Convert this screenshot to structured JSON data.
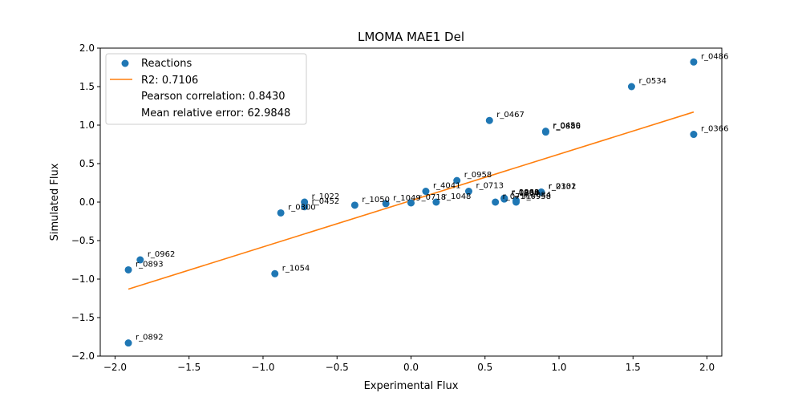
{
  "chart_data": {
    "type": "scatter",
    "title": "LMOMA MAE1 Del",
    "xlabel": "Experimental Flux",
    "ylabel": "Simulated Flux",
    "xlim": [
      -2.1,
      2.1
    ],
    "ylim": [
      -2.0,
      2.0
    ],
    "xticks": [
      -2.0,
      -1.5,
      -1.0,
      -0.5,
      0.0,
      0.5,
      1.0,
      1.5,
      2.0
    ],
    "yticks": [
      -2.0,
      -1.5,
      -1.0,
      -0.5,
      0.0,
      0.5,
      1.0,
      1.5,
      2.0
    ],
    "xtick_labels": [
      "−2.0",
      "−1.5",
      "−1.0",
      "−0.5",
      "0.0",
      "0.5",
      "1.0",
      "1.5",
      "2.0"
    ],
    "ytick_labels": [
      "−2.0",
      "−1.5",
      "−1.0",
      "−0.5",
      "0.0",
      "0.5",
      "1.0",
      "1.5",
      "2.0"
    ],
    "colors": {
      "points": "#1f77b4",
      "fit_line": "#ff7f0e"
    },
    "legend": {
      "position": "upper-left",
      "entries": [
        "Reactions",
        "R2: 0.7106",
        "Pearson correlation: 0.8430",
        "Mean relative error: 62.9848"
      ]
    },
    "fit_line": {
      "x": [
        -1.91,
        1.91
      ],
      "y": [
        -1.13,
        1.17
      ]
    },
    "points": [
      {
        "x": 1.91,
        "y": 1.82,
        "label": "r_0486"
      },
      {
        "x": 1.49,
        "y": 1.5,
        "label": "r_0534"
      },
      {
        "x": 0.53,
        "y": 1.06,
        "label": "r_0467"
      },
      {
        "x": 0.91,
        "y": 0.92,
        "label": "r_0450"
      },
      {
        "x": 0.91,
        "y": 0.91,
        "label": "r_0886"
      },
      {
        "x": 1.91,
        "y": 0.88,
        "label": "r_0366"
      },
      {
        "x": 0.31,
        "y": 0.28,
        "label": "r_0958"
      },
      {
        "x": 0.1,
        "y": 0.14,
        "label": "r_4041"
      },
      {
        "x": 0.39,
        "y": 0.14,
        "label": "r_0713"
      },
      {
        "x": 0.88,
        "y": 0.13,
        "label": "r_0302"
      },
      {
        "x": 0.88,
        "y": 0.13,
        "label": "r_2131"
      },
      {
        "x": 0.63,
        "y": 0.05,
        "label": "r_0888"
      },
      {
        "x": 0.63,
        "y": 0.05,
        "label": "r_1000"
      },
      {
        "x": 0.63,
        "y": 0.05,
        "label": "r_0961"
      },
      {
        "x": 0.63,
        "y": 0.04,
        "label": "r_1234"
      },
      {
        "x": 0.71,
        "y": 0.02,
        "label": "r_1084"
      },
      {
        "x": 0.71,
        "y": 0.0,
        "label": "r_0958"
      },
      {
        "x": 0.57,
        "y": 0.0,
        "label": "r_0714"
      },
      {
        "x": 0.0,
        "y": -0.01,
        "label": "r_0718"
      },
      {
        "x": 0.17,
        "y": 0.0,
        "label": "r_1048"
      },
      {
        "x": -0.17,
        "y": -0.02,
        "label": "r_1049"
      },
      {
        "x": -0.38,
        "y": -0.04,
        "label": "r_1050"
      },
      {
        "x": -0.72,
        "y": 0.0,
        "label": "r_1022"
      },
      {
        "x": -0.72,
        "y": -0.06,
        "label": "r_0452"
      },
      {
        "x": -0.88,
        "y": -0.14,
        "label": "r_0300"
      },
      {
        "x": -0.92,
        "y": -0.93,
        "label": "r_1054"
      },
      {
        "x": -1.83,
        "y": -0.75,
        "label": "r_0962"
      },
      {
        "x": -1.91,
        "y": -0.88,
        "label": "r_0893"
      },
      {
        "x": -1.91,
        "y": -1.83,
        "label": "r_0892"
      }
    ]
  }
}
